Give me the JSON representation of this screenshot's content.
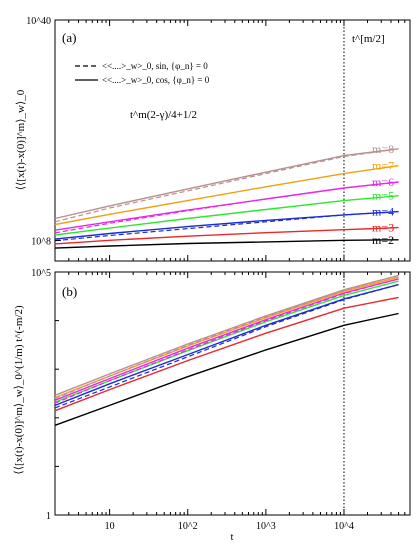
{
  "chart_data": [
    {
      "type": "line",
      "panel_label": "(a)",
      "ylabel": "⟨⟨[x(t)-x(0)]^m⟩_w⟩_0",
      "xlabel": "",
      "xscale": "log",
      "yscale": "log",
      "xlim": [
        2,
        70000
      ],
      "ylim": [
        100000.0,
        1e+40
      ],
      "y_tick_labels": [
        "10^8",
        "10^40"
      ],
      "x_tick_labels": [
        "10",
        "10^2",
        "10^3",
        "10^4"
      ],
      "vline_x": 10000,
      "annotations": [
        "t^[m/2]",
        "t^m(2-γ)/4+1/2"
      ],
      "legend": [
        {
          "style": "dashed",
          "text": "<<....>_w>_0, sin, {φ_n} = 0"
        },
        {
          "style": "solid",
          "text": "<<....>_w>_0, cos, {φ_n} = 0"
        }
      ],
      "series": [
        {
          "name": "m=2",
          "color": "#000000",
          "label_color": "#000000",
          "x": [
            2,
            10,
            100,
            1000,
            10000,
            50000
          ],
          "y_solid": [
            7500000.0,
            15000000.0,
            35000000.0,
            60000000.0,
            100000000.0,
            120000000.0
          ],
          "y_dashed": null
        },
        {
          "name": "m=3",
          "color": "#e8282b",
          "label_color": "#e8282b",
          "x": [
            2,
            10,
            100,
            1000,
            10000,
            50000
          ],
          "y_solid": [
            30000000.0,
            100000000.0,
            400000000.0,
            1300000000.0,
            3500000000.0,
            7000000000.0
          ],
          "y_dashed": null
        },
        {
          "name": "m=4",
          "color": "#1a2ad6",
          "label_color": "#1a2ad6",
          "x": [
            2,
            10,
            100,
            1000,
            10000,
            50000
          ],
          "y_solid": [
            150000000.0,
            1000000000.0,
            10000000000.0,
            80000000000.0,
            500000000000.0,
            1500000000000.0
          ],
          "y_dashed": [
            90000000.0,
            500000000.0,
            5000000000.0,
            50000000000.0,
            500000000000.0,
            1500000000000.0
          ]
        },
        {
          "name": "m=5",
          "color": "#2ee82e",
          "label_color": "#2ee82e",
          "x": [
            2,
            10,
            100,
            1000,
            10000,
            50000
          ],
          "y_solid": [
            600000000.0,
            6000000000.0,
            150000000000.0,
            3000000000000.0,
            60000000000000.0,
            300000000000000.0
          ],
          "y_dashed": null
        },
        {
          "name": "m=6",
          "color": "#e828e8",
          "label_color": "#e828e8",
          "x": [
            2,
            10,
            100,
            1000,
            10000,
            50000
          ],
          "y_solid": [
            3000000000.0,
            50000000000.0,
            2500000000000.0,
            100000000000000.0,
            4000000000000000.0,
            3e+16
          ],
          "y_dashed": [
            1200000000.0,
            30000000000.0,
            2000000000000.0,
            100000000000000.0,
            4000000000000000.0,
            3e+16
          ]
        },
        {
          "name": "m=7",
          "color": "#f0a010",
          "label_color": "#f0a010",
          "x": [
            2,
            10,
            100,
            1000,
            10000,
            50000
          ],
          "y_solid": [
            20000000000.0,
            600000000000.0,
            60000000000000.0,
            6000000000000000.0,
            5e+17,
            7e+18
          ],
          "y_dashed": null
        },
        {
          "name": "m=8",
          "color": "#b89090",
          "label_color": "#b89090",
          "x": [
            2,
            10,
            100,
            1000,
            10000,
            50000
          ],
          "y_solid": [
            150000000000.0,
            10000000000000.0,
            3000000000000000.0,
            8e+17,
            2e+20,
            2e+21
          ],
          "y_dashed": [
            50000000000.0,
            5000000000000.0,
            1500000000000000.0,
            5e+17,
            1.5e+20,
            2e+21
          ]
        }
      ]
    },
    {
      "type": "line",
      "panel_label": "(b)",
      "ylabel": "⟨⟨[x(t)-x(0)]^m⟩_w⟩_0^(1/m) t^(-m/2)",
      "xlabel": "t",
      "xscale": "log",
      "yscale": "log",
      "xlim": [
        2,
        70000
      ],
      "ylim": [
        1,
        100000
      ],
      "y_tick_labels": [
        "1",
        "10^5"
      ],
      "x_tick_labels": [
        "10",
        "10^2",
        "10^3",
        "10^4"
      ],
      "vline_x": 10000,
      "series": [
        {
          "name": "m=2",
          "color": "#000000",
          "x": [
            2,
            10,
            100,
            1000,
            10000,
            50000
          ],
          "y_solid": [
            70,
            180,
            700,
            2500,
            8000,
            14000
          ],
          "y_dashed": null
        },
        {
          "name": "m=3",
          "color": "#e8282b",
          "x": [
            2,
            10,
            100,
            1000,
            10000,
            50000
          ],
          "y_solid": [
            140,
            380,
            1500,
            5500,
            18000,
            30000
          ],
          "y_dashed": null
        },
        {
          "name": "m=4",
          "color": "#1a2ad6",
          "x": [
            2,
            10,
            100,
            1000,
            10000,
            50000
          ],
          "y_solid": [
            180,
            500,
            2000,
            8000,
            28000,
            55000
          ],
          "y_dashed": [
            160,
            430,
            1800,
            7500,
            27000,
            55000
          ]
        },
        {
          "name": "m=5",
          "color": "#2ee82e",
          "x": [
            2,
            10,
            100,
            1000,
            10000,
            50000
          ],
          "y_solid": [
            210,
            580,
            2400,
            9500,
            33000,
            65000
          ],
          "y_dashed": null
        },
        {
          "name": "m=6",
          "color": "#e828e8",
          "x": [
            2,
            10,
            100,
            1000,
            10000,
            50000
          ],
          "y_solid": [
            230,
            640,
            2700,
            10500,
            37000,
            72000
          ],
          "y_dashed": [
            200,
            580,
            2500,
            10000,
            36000,
            72000
          ]
        },
        {
          "name": "m=7",
          "color": "#f0a010",
          "x": [
            2,
            10,
            100,
            1000,
            10000,
            50000
          ],
          "y_solid": [
            260,
            720,
            3000,
            11500,
            40000,
            78000
          ],
          "y_dashed": null
        },
        {
          "name": "m=8",
          "color": "#b89090",
          "x": [
            2,
            10,
            100,
            1000,
            10000,
            50000
          ],
          "y_solid": [
            290,
            800,
            3300,
            12500,
            43000,
            85000
          ],
          "y_dashed": [
            250,
            720,
            3100,
            12000,
            42000,
            85000
          ]
        }
      ]
    }
  ]
}
